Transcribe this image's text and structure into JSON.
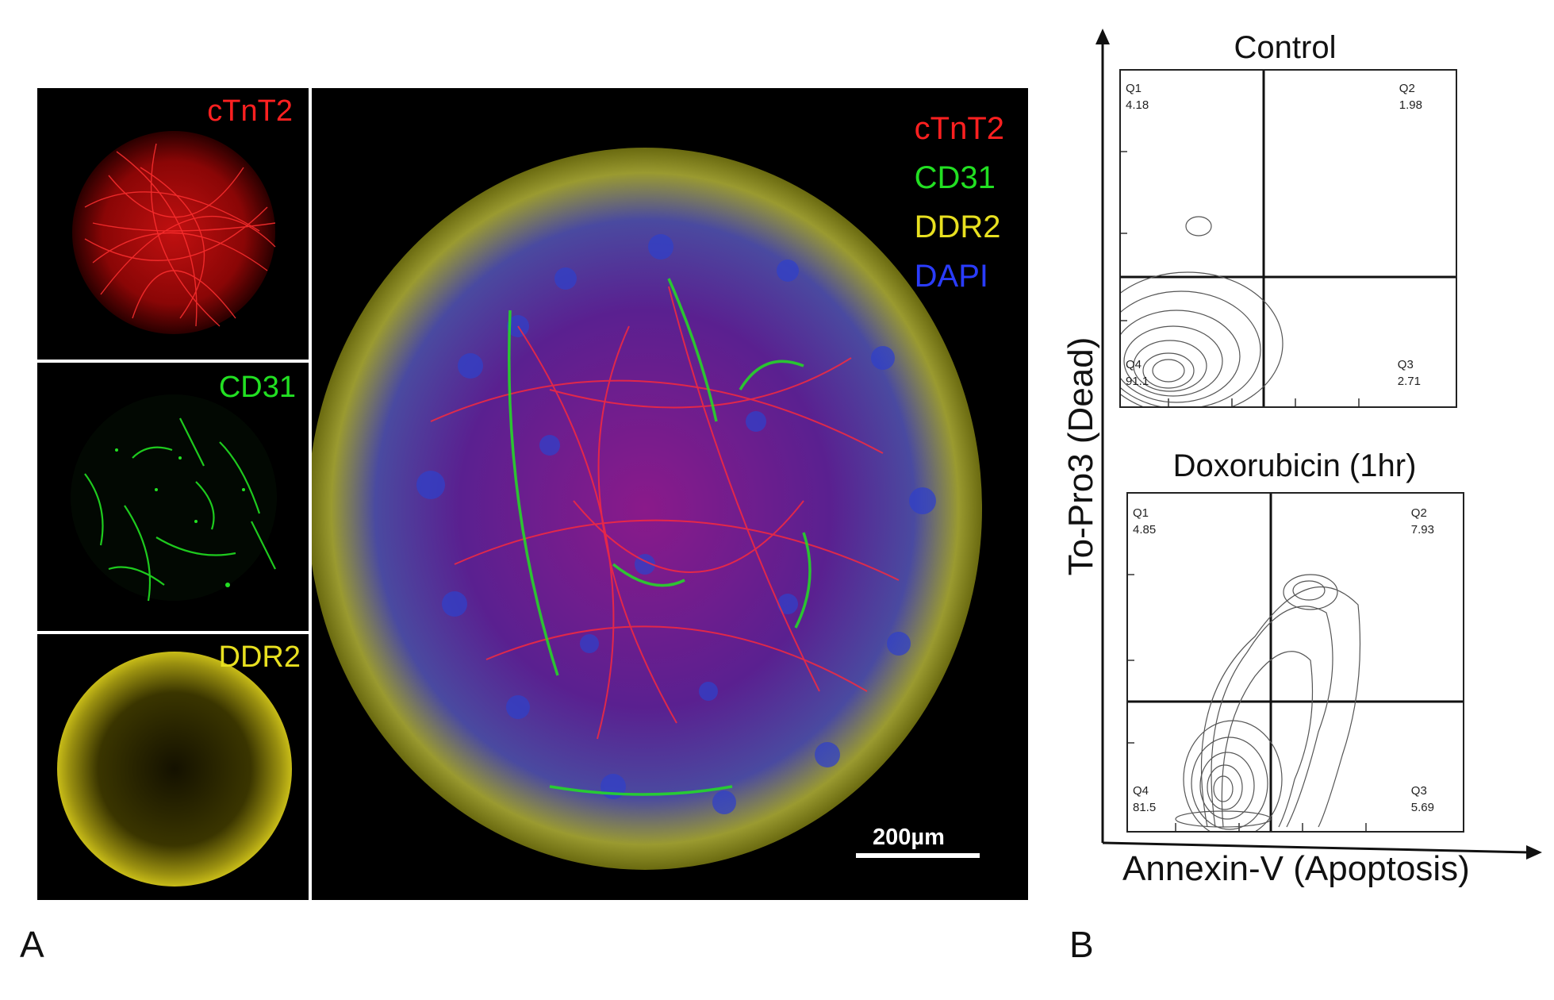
{
  "panel_a": {
    "letter": "A",
    "small_panels": [
      {
        "label": "cTnT2",
        "color": "#ff2020"
      },
      {
        "label": "CD31",
        "color": "#22e022"
      },
      {
        "label": "DDR2",
        "color": "#e8e020"
      }
    ],
    "main_panel": {
      "legend": [
        {
          "label": "cTnT2",
          "color": "#ff2020"
        },
        {
          "label": "CD31",
          "color": "#22e022"
        },
        {
          "label": "DDR2",
          "color": "#e8e020"
        },
        {
          "label": "DAPI",
          "color": "#2a3cff"
        }
      ],
      "scale_bar": "200µm"
    }
  },
  "panel_b": {
    "letter": "B",
    "y_axis_label": "To-Pro3 (Dead)",
    "x_axis_label": "Annexin-V (Apoptosis)",
    "plots": [
      {
        "title": "Control",
        "quadrants": {
          "Q1": "4.18",
          "Q2": "1.98",
          "Q3": "2.71",
          "Q4": "91.1"
        }
      },
      {
        "title": "Doxorubicin (1hr)",
        "quadrants": {
          "Q1": "4.85",
          "Q2": "7.93",
          "Q3": "5.69",
          "Q4": "81.5"
        }
      }
    ]
  }
}
